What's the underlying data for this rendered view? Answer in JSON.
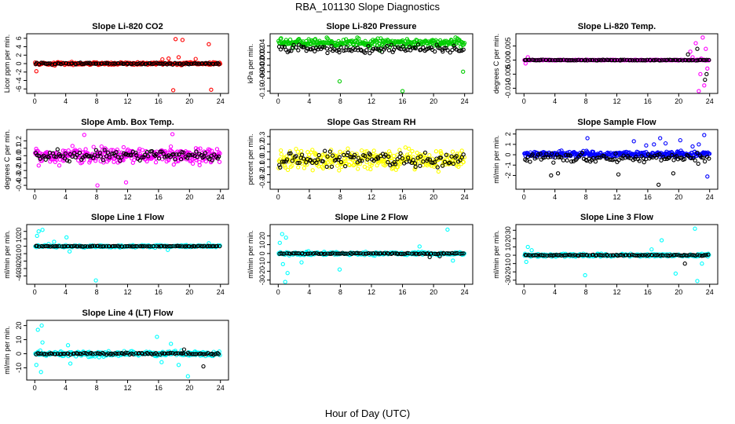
{
  "figure": {
    "title": "RBA_101130  Slope Diagnostics",
    "xlabel": "Hour of Day (UTC)"
  },
  "chart_data": [
    {
      "type": "scatter",
      "title": "Slope Li-820 CO2",
      "ylabel": "Licor ppm per min.",
      "xlim": [
        0,
        24
      ],
      "ylim": [
        -6.5,
        6.5
      ],
      "xticks": [
        0,
        4,
        8,
        12,
        16,
        20,
        24
      ],
      "yticks": [
        -6,
        -4,
        -2,
        0,
        2,
        4,
        6
      ],
      "series": [
        {
          "color": "#ff0000",
          "base": 0,
          "spread": 0.25,
          "density": 300,
          "outliers": [
            [
              0.2,
              -1.8
            ],
            [
              17.3,
              1.2
            ],
            [
              17.9,
              -6.3
            ],
            [
              18.2,
              5.8
            ],
            [
              18.6,
              1.5
            ],
            [
              19.1,
              5.6
            ],
            [
              22.5,
              4.6
            ],
            [
              22.8,
              -6.2
            ],
            [
              16.5,
              1.0
            ],
            [
              20.8,
              1.1
            ]
          ]
        },
        {
          "color": "#000000",
          "base": 0,
          "spread": 0.15,
          "density": 100,
          "outliers": []
        }
      ]
    },
    {
      "type": "scatter",
      "title": "Slope Li-820 Pressure",
      "ylabel": "kPa per min.",
      "xlim": [
        0,
        24
      ],
      "ylim": [
        -0.1,
        0.07
      ],
      "xticks": [
        0,
        4,
        8,
        12,
        16,
        20,
        24
      ],
      "yticks": [
        -0.1,
        -0.06,
        -0.04,
        -0.02,
        0,
        0.02,
        0.04
      ],
      "ytick_labels": [
        "-0.10",
        "-0.06",
        "-0.04",
        "-0.02",
        "0.00",
        "0.02",
        "0.04"
      ],
      "series": [
        {
          "color": "#00cc00",
          "base": 0.05,
          "spread": 0.01,
          "density": 300,
          "outliers": [
            [
              7.9,
              -0.07
            ],
            [
              16.0,
              -0.1
            ],
            [
              23.8,
              -0.04
            ],
            [
              13.1,
              0.025
            ]
          ]
        },
        {
          "color": "#000000",
          "base": 0.03,
          "spread": 0.01,
          "density": 110,
          "outliers": []
        }
      ]
    },
    {
      "type": "scatter",
      "title": "Slope Li-820 Temp.",
      "ylabel": "degrees C per min.",
      "xlim": [
        0,
        24
      ],
      "ylim": [
        -0.011,
        0.0085
      ],
      "xticks": [
        0,
        4,
        8,
        12,
        16,
        20,
        24
      ],
      "yticks": [
        -0.01,
        -0.005,
        0,
        0.005
      ],
      "ytick_labels": [
        "-0.010",
        "-0.005",
        "0.000",
        "0.005"
      ],
      "series": [
        {
          "color": "#ff00ff",
          "base": 0,
          "spread": 0.0001,
          "density": 260,
          "outliers": [
            [
              21.5,
              0.003
            ],
            [
              22.2,
              0.006
            ],
            [
              22.8,
              -0.005
            ],
            [
              23.1,
              0.008
            ],
            [
              23.3,
              -0.009
            ],
            [
              22.6,
              -0.011
            ],
            [
              23.5,
              0.004
            ],
            [
              21.8,
              0.001
            ],
            [
              22.9,
              0.0005
            ],
            [
              23.7,
              -0.003
            ],
            [
              0.2,
              -0.0012
            ],
            [
              0.5,
              0.001
            ]
          ]
        },
        {
          "color": "#000000",
          "base": 0,
          "spread": 0.0001,
          "density": 100,
          "outliers": [
            [
              21.2,
              0.002
            ],
            [
              22.4,
              0.004
            ],
            [
              23.6,
              -0.005
            ],
            [
              23.4,
              -0.007
            ]
          ]
        }
      ]
    },
    {
      "type": "scatter",
      "title": "Slope Amb. Box Temp.",
      "ylabel": "degrees C per min.",
      "xlim": [
        0,
        24
      ],
      "ylim": [
        -0.42,
        0.32
      ],
      "xticks": [
        0,
        4,
        8,
        12,
        16,
        20,
        24
      ],
      "yticks": [
        -0.4,
        -0.3,
        -0.2,
        -0.1,
        0,
        0.1,
        0.2
      ],
      "ytick_labels": [
        "-0.4",
        "-0.3",
        "-0.2",
        "-0.1",
        "0.0",
        "0.1",
        "0.2"
      ],
      "series": [
        {
          "color": "#ff00ff",
          "base": 0,
          "spread": 0.09,
          "density": 320,
          "outliers": [
            [
              6.4,
              0.28
            ],
            [
              8.1,
              -0.4
            ],
            [
              17.8,
              0.29
            ],
            [
              11.8,
              -0.36
            ]
          ]
        },
        {
          "color": "#000000",
          "base": 0,
          "spread": 0.06,
          "density": 110,
          "outliers": []
        }
      ]
    },
    {
      "type": "scatter",
      "title": "Slope Gas Stream RH",
      "ylabel": "percent per min.",
      "xlim": [
        0,
        24
      ],
      "ylim": [
        -0.36,
        0.36
      ],
      "xticks": [
        0,
        4,
        8,
        12,
        16,
        20,
        24
      ],
      "yticks": [
        -0.3,
        -0.2,
        -0.1,
        0,
        0.1,
        0.2,
        0.3
      ],
      "ytick_labels": [
        "-0.3",
        "-0.2",
        "-0.1",
        "0.0",
        "0.1",
        "0.2",
        "0.3"
      ],
      "series": [
        {
          "color": "#ffff00",
          "base": 0,
          "spread": 0.1,
          "density": 320,
          "outliers": []
        },
        {
          "color": "#000000",
          "base": 0,
          "spread": 0.08,
          "density": 110,
          "outliers": []
        }
      ]
    },
    {
      "type": "scatter",
      "title": "Slope Sample Flow",
      "ylabel": "ml/min per min.",
      "xlim": [
        0,
        24
      ],
      "ylim": [
        -3.1,
        2.2
      ],
      "xticks": [
        0,
        4,
        8,
        12,
        16,
        20,
        24
      ],
      "yticks": [
        -2,
        -1,
        0,
        1,
        2
      ],
      "series": [
        {
          "color": "#0000ff",
          "base": 0.05,
          "spread": 0.22,
          "density": 320,
          "outliers": [
            [
              14.2,
              1.3
            ],
            [
              15.8,
              0.9
            ],
            [
              16.8,
              1.0
            ],
            [
              17.6,
              1.6
            ],
            [
              18.3,
              1.1
            ],
            [
              20.2,
              1.4
            ],
            [
              22.6,
              1.0
            ],
            [
              23.3,
              1.9
            ],
            [
              8.2,
              1.6
            ],
            [
              23.7,
              -2.1
            ],
            [
              21.8,
              0.8
            ]
          ]
        },
        {
          "color": "#000000",
          "base": -0.3,
          "spread": 0.35,
          "density": 110,
          "outliers": [
            [
              3.5,
              -2.0
            ],
            [
              4.4,
              -1.8
            ],
            [
              17.4,
              -2.9
            ],
            [
              12.2,
              -1.9
            ],
            [
              19.3,
              -1.8
            ]
          ]
        }
      ]
    },
    {
      "type": "scatter",
      "title": "Slope Line 1 Flow",
      "ylabel": "ml/min per min.",
      "xlim": [
        0,
        24
      ],
      "ylim": [
        -48,
        26
      ],
      "xticks": [
        0,
        4,
        8,
        12,
        16,
        20,
        24
      ],
      "yticks": [
        -40,
        -30,
        -20,
        -10,
        0,
        10,
        20
      ],
      "series": [
        {
          "color": "#00ffff",
          "base": 0,
          "spread": 1.2,
          "density": 260,
          "outliers": [
            [
              0.5,
              20
            ],
            [
              1.0,
              22
            ],
            [
              0.3,
              14
            ],
            [
              4.1,
              12
            ],
            [
              4.5,
              -7
            ],
            [
              7.9,
              -46
            ],
            [
              1.8,
              3
            ],
            [
              2.5,
              6
            ],
            [
              17.2,
              -5
            ],
            [
              22.5,
              4
            ]
          ]
        },
        {
          "color": "#000000",
          "base": 0,
          "spread": 0.4,
          "density": 100,
          "outliers": []
        }
      ]
    },
    {
      "type": "scatter",
      "title": "Slope Line 2 Flow",
      "ylabel": "ml/min per min.",
      "xlim": [
        0,
        24
      ],
      "ylim": [
        -32,
        30
      ],
      "xticks": [
        0,
        4,
        8,
        12,
        16,
        20,
        24
      ],
      "yticks": [
        -30,
        -20,
        -10,
        0,
        10,
        20
      ],
      "series": [
        {
          "color": "#00ffff",
          "base": 0,
          "spread": 1.5,
          "density": 260,
          "outliers": [
            [
              0.5,
              22
            ],
            [
              1.0,
              18
            ],
            [
              0.2,
              12
            ],
            [
              0.6,
              -12
            ],
            [
              1.2,
              -22
            ],
            [
              3.0,
              -10
            ],
            [
              7.9,
              -18
            ],
            [
              0.9,
              -32
            ],
            [
              21.8,
              27
            ],
            [
              18.2,
              8
            ],
            [
              22.5,
              -8
            ]
          ]
        },
        {
          "color": "#000000",
          "base": 0,
          "spread": 0.5,
          "density": 100,
          "outliers": [
            [
              19.5,
              -4
            ],
            [
              20.8,
              -3
            ]
          ]
        }
      ]
    },
    {
      "type": "scatter",
      "title": "Slope Line 3 Flow",
      "ylabel": "ml/min per min.",
      "xlim": [
        0,
        24
      ],
      "ylim": [
        -32,
        34
      ],
      "xticks": [
        0,
        4,
        8,
        12,
        16,
        20,
        24
      ],
      "yticks": [
        -30,
        -20,
        -10,
        0,
        10,
        20,
        30
      ],
      "series": [
        {
          "color": "#00ffff",
          "base": 0,
          "spread": 1.5,
          "density": 260,
          "outliers": [
            [
              0.5,
              10
            ],
            [
              0.3,
              -8
            ],
            [
              1.0,
              6
            ],
            [
              7.9,
              -24
            ],
            [
              17.8,
              18
            ],
            [
              19.6,
              -22
            ],
            [
              22.1,
              32
            ],
            [
              22.4,
              -31
            ],
            [
              23.0,
              -10
            ],
            [
              16.5,
              7
            ]
          ]
        },
        {
          "color": "#000000",
          "base": 0,
          "spread": 0.5,
          "density": 100,
          "outliers": [
            [
              20.8,
              -10
            ]
          ]
        }
      ]
    },
    {
      "type": "scatter",
      "title": "Slope Line 4 (LT) Flow",
      "ylabel": "ml/min per min.",
      "xlim": [
        0,
        24
      ],
      "ylim": [
        -17,
        22
      ],
      "xticks": [
        0,
        4,
        8,
        12,
        16,
        20,
        24
      ],
      "yticks": [
        -10,
        0,
        10,
        20
      ],
      "series": [
        {
          "color": "#00ffff",
          "base": 0,
          "spread": 1.5,
          "density": 260,
          "outliers": [
            [
              0.4,
              17
            ],
            [
              0.9,
              20
            ],
            [
              0.2,
              -8
            ],
            [
              0.8,
              -13
            ],
            [
              1.0,
              8
            ],
            [
              4.3,
              6
            ],
            [
              4.6,
              -7
            ],
            [
              15.8,
              12
            ],
            [
              19.8,
              -16
            ],
            [
              16.4,
              -6
            ],
            [
              17.6,
              7
            ],
            [
              18.6,
              -8
            ]
          ]
        },
        {
          "color": "#000000",
          "base": 0,
          "spread": 0.6,
          "density": 100,
          "outliers": [
            [
              19.3,
              3
            ],
            [
              21.8,
              -9
            ]
          ]
        }
      ]
    }
  ]
}
